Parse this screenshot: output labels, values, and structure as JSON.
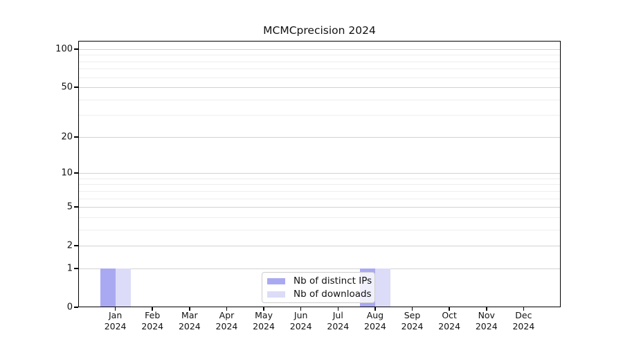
{
  "title": "MCMCprecision 2024",
  "colors": {
    "series": [
      "#a9a9f2",
      "#dcdcf8"
    ],
    "grid_major": "#d2d2d2",
    "grid_minor": "#eeeeee",
    "axis": "#000000",
    "background": "#ffffff"
  },
  "legend": {
    "items": [
      {
        "label": "Nb of distinct IPs"
      },
      {
        "label": "Nb of downloads"
      }
    ]
  },
  "chart_data": {
    "type": "bar",
    "title": "MCMCprecision 2024",
    "categories": [
      "Jan 2024",
      "Feb 2024",
      "Mar 2024",
      "Apr 2024",
      "May 2024",
      "Jun 2024",
      "Jul 2024",
      "Aug 2024",
      "Sep 2024",
      "Oct 2024",
      "Nov 2024",
      "Dec 2024"
    ],
    "series": [
      {
        "name": "Nb of distinct IPs",
        "values": [
          1,
          0,
          0,
          0,
          0,
          0,
          0,
          1,
          0,
          0,
          0,
          0
        ]
      },
      {
        "name": "Nb of downloads",
        "values": [
          1,
          0,
          0,
          0,
          0,
          0,
          0,
          1,
          0,
          0,
          0,
          0
        ]
      }
    ],
    "yscale": "log1p",
    "ylim": [
      0,
      116
    ],
    "y_major_ticks": [
      100,
      50,
      20,
      10,
      5,
      2,
      1,
      0
    ],
    "y_minor_ticks": [
      90,
      80,
      70,
      60,
      40,
      30,
      9,
      8,
      7,
      6,
      4,
      3
    ],
    "grid": "both",
    "legend_position": "lower center"
  }
}
